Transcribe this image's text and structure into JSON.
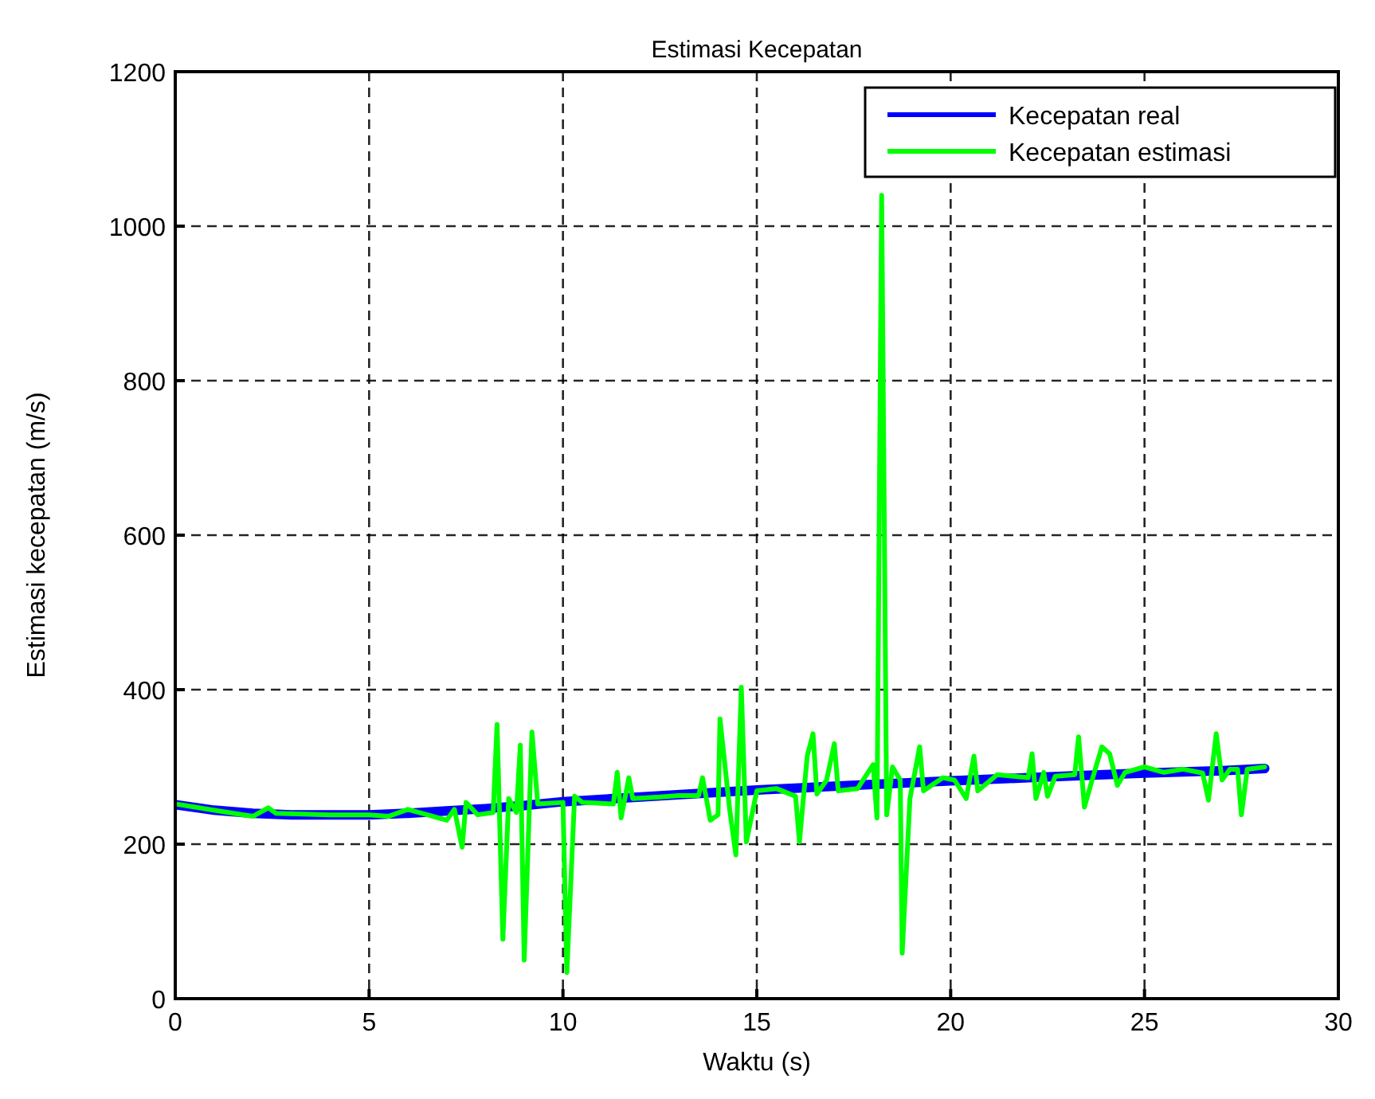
{
  "chart_data": {
    "type": "line",
    "title": "Estimasi Kecepatan",
    "xlabel": "Waktu (s)",
    "ylabel": "Estimasi kecepatan (m/s)",
    "xlim": [
      0,
      30
    ],
    "xticks": [
      0,
      5,
      10,
      15,
      20,
      25,
      30
    ],
    "ylim": [
      0,
      1200
    ],
    "yticks": [
      0,
      200,
      400,
      600,
      800,
      1000,
      1200
    ],
    "grid": true,
    "legend": "top right",
    "line_style": "solid",
    "marker": "none",
    "series": [
      {
        "name": "Kecepatan real",
        "color": "#0000ff",
        "x": [
          0,
          1,
          2,
          3,
          4,
          5,
          6,
          7,
          8,
          9,
          10,
          12,
          15,
          17,
          20,
          22,
          25,
          27,
          28.1
        ],
        "values": [
          251,
          244,
          240,
          238,
          238,
          238,
          240,
          243,
          246,
          250,
          255,
          261,
          270,
          275,
          282,
          286,
          292,
          295,
          298
        ]
      },
      {
        "name": "Kecepatan estimasi",
        "color": "#00ff00",
        "x": [
          0,
          1.5,
          2,
          2.4,
          2.6,
          4,
          5,
          5.5,
          6,
          7,
          7.2,
          7.4,
          7.5,
          7.8,
          8.2,
          8.3,
          8.45,
          8.6,
          8.8,
          8.9,
          9,
          9.2,
          9.35,
          10,
          10.1,
          10.3,
          10.5,
          11.3,
          11.4,
          11.5,
          11.7,
          11.8,
          12.5,
          13,
          13.5,
          13.6,
          13.8,
          14,
          14.05,
          14.3,
          14.46,
          14.6,
          14.73,
          15,
          15.5,
          16,
          16.1,
          16.3,
          16.45,
          16.55,
          16.8,
          17,
          17.1,
          17.6,
          18,
          18.1,
          18.22,
          18.35,
          18.5,
          18.7,
          18.75,
          18.95,
          19.2,
          19.3,
          19.8,
          20.1,
          20.4,
          20.6,
          20.7,
          21.2,
          22,
          22.1,
          22.2,
          22.4,
          22.5,
          22.7,
          23.2,
          23.3,
          23.45,
          23.7,
          23.9,
          24.1,
          24.3,
          24.5,
          25,
          25.5,
          26,
          26.5,
          26.65,
          26.85,
          27,
          27.2,
          27.4,
          27.5,
          27.65,
          28.1
        ],
        "values": [
          252,
          240,
          236,
          247,
          240,
          238,
          238,
          236,
          245,
          231,
          245,
          196,
          254,
          238,
          241,
          355,
          77,
          259,
          241,
          328,
          50,
          345,
          252,
          254,
          34,
          262,
          254,
          252,
          293,
          234,
          286,
          259,
          261,
          263,
          263,
          286,
          231,
          238,
          362,
          245,
          186,
          403,
          203,
          269,
          272,
          262,
          203,
          314,
          343,
          265,
          283,
          330,
          269,
          272,
          303,
          234,
          1040,
          238,
          300,
          283,
          59,
          259,
          326,
          269,
          286,
          283,
          259,
          314,
          269,
          290,
          286,
          317,
          259,
          293,
          262,
          288,
          290,
          339,
          248,
          292,
          326,
          317,
          276,
          293,
          300,
          293,
          297,
          292,
          257,
          343,
          283,
          297,
          297,
          238,
          297,
          300
        ]
      }
    ]
  }
}
